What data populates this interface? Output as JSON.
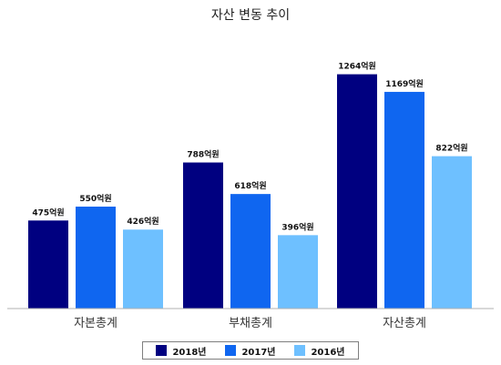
{
  "chart_data": {
    "type": "bar",
    "title": "자산 변동 추이",
    "categories": [
      "자본총계",
      "부채총계",
      "자산총계"
    ],
    "series": [
      {
        "name": "2018년",
        "color": "#000080",
        "values": [
          475,
          788,
          1264
        ],
        "labels": [
          "475억원",
          "788억원",
          "1264억원"
        ]
      },
      {
        "name": "2017년",
        "color": "#0f66f0",
        "values": [
          550,
          618,
          1169
        ],
        "labels": [
          "550억원",
          "618억원",
          "1169억원"
        ]
      },
      {
        "name": "2016년",
        "color": "#6ec0ff",
        "values": [
          426,
          396,
          822
        ],
        "labels": [
          "426억원",
          "396억원",
          "822억원"
        ]
      }
    ],
    "ylim": [
      0,
      1370
    ],
    "grid": false,
    "legend_position": "bottom"
  }
}
